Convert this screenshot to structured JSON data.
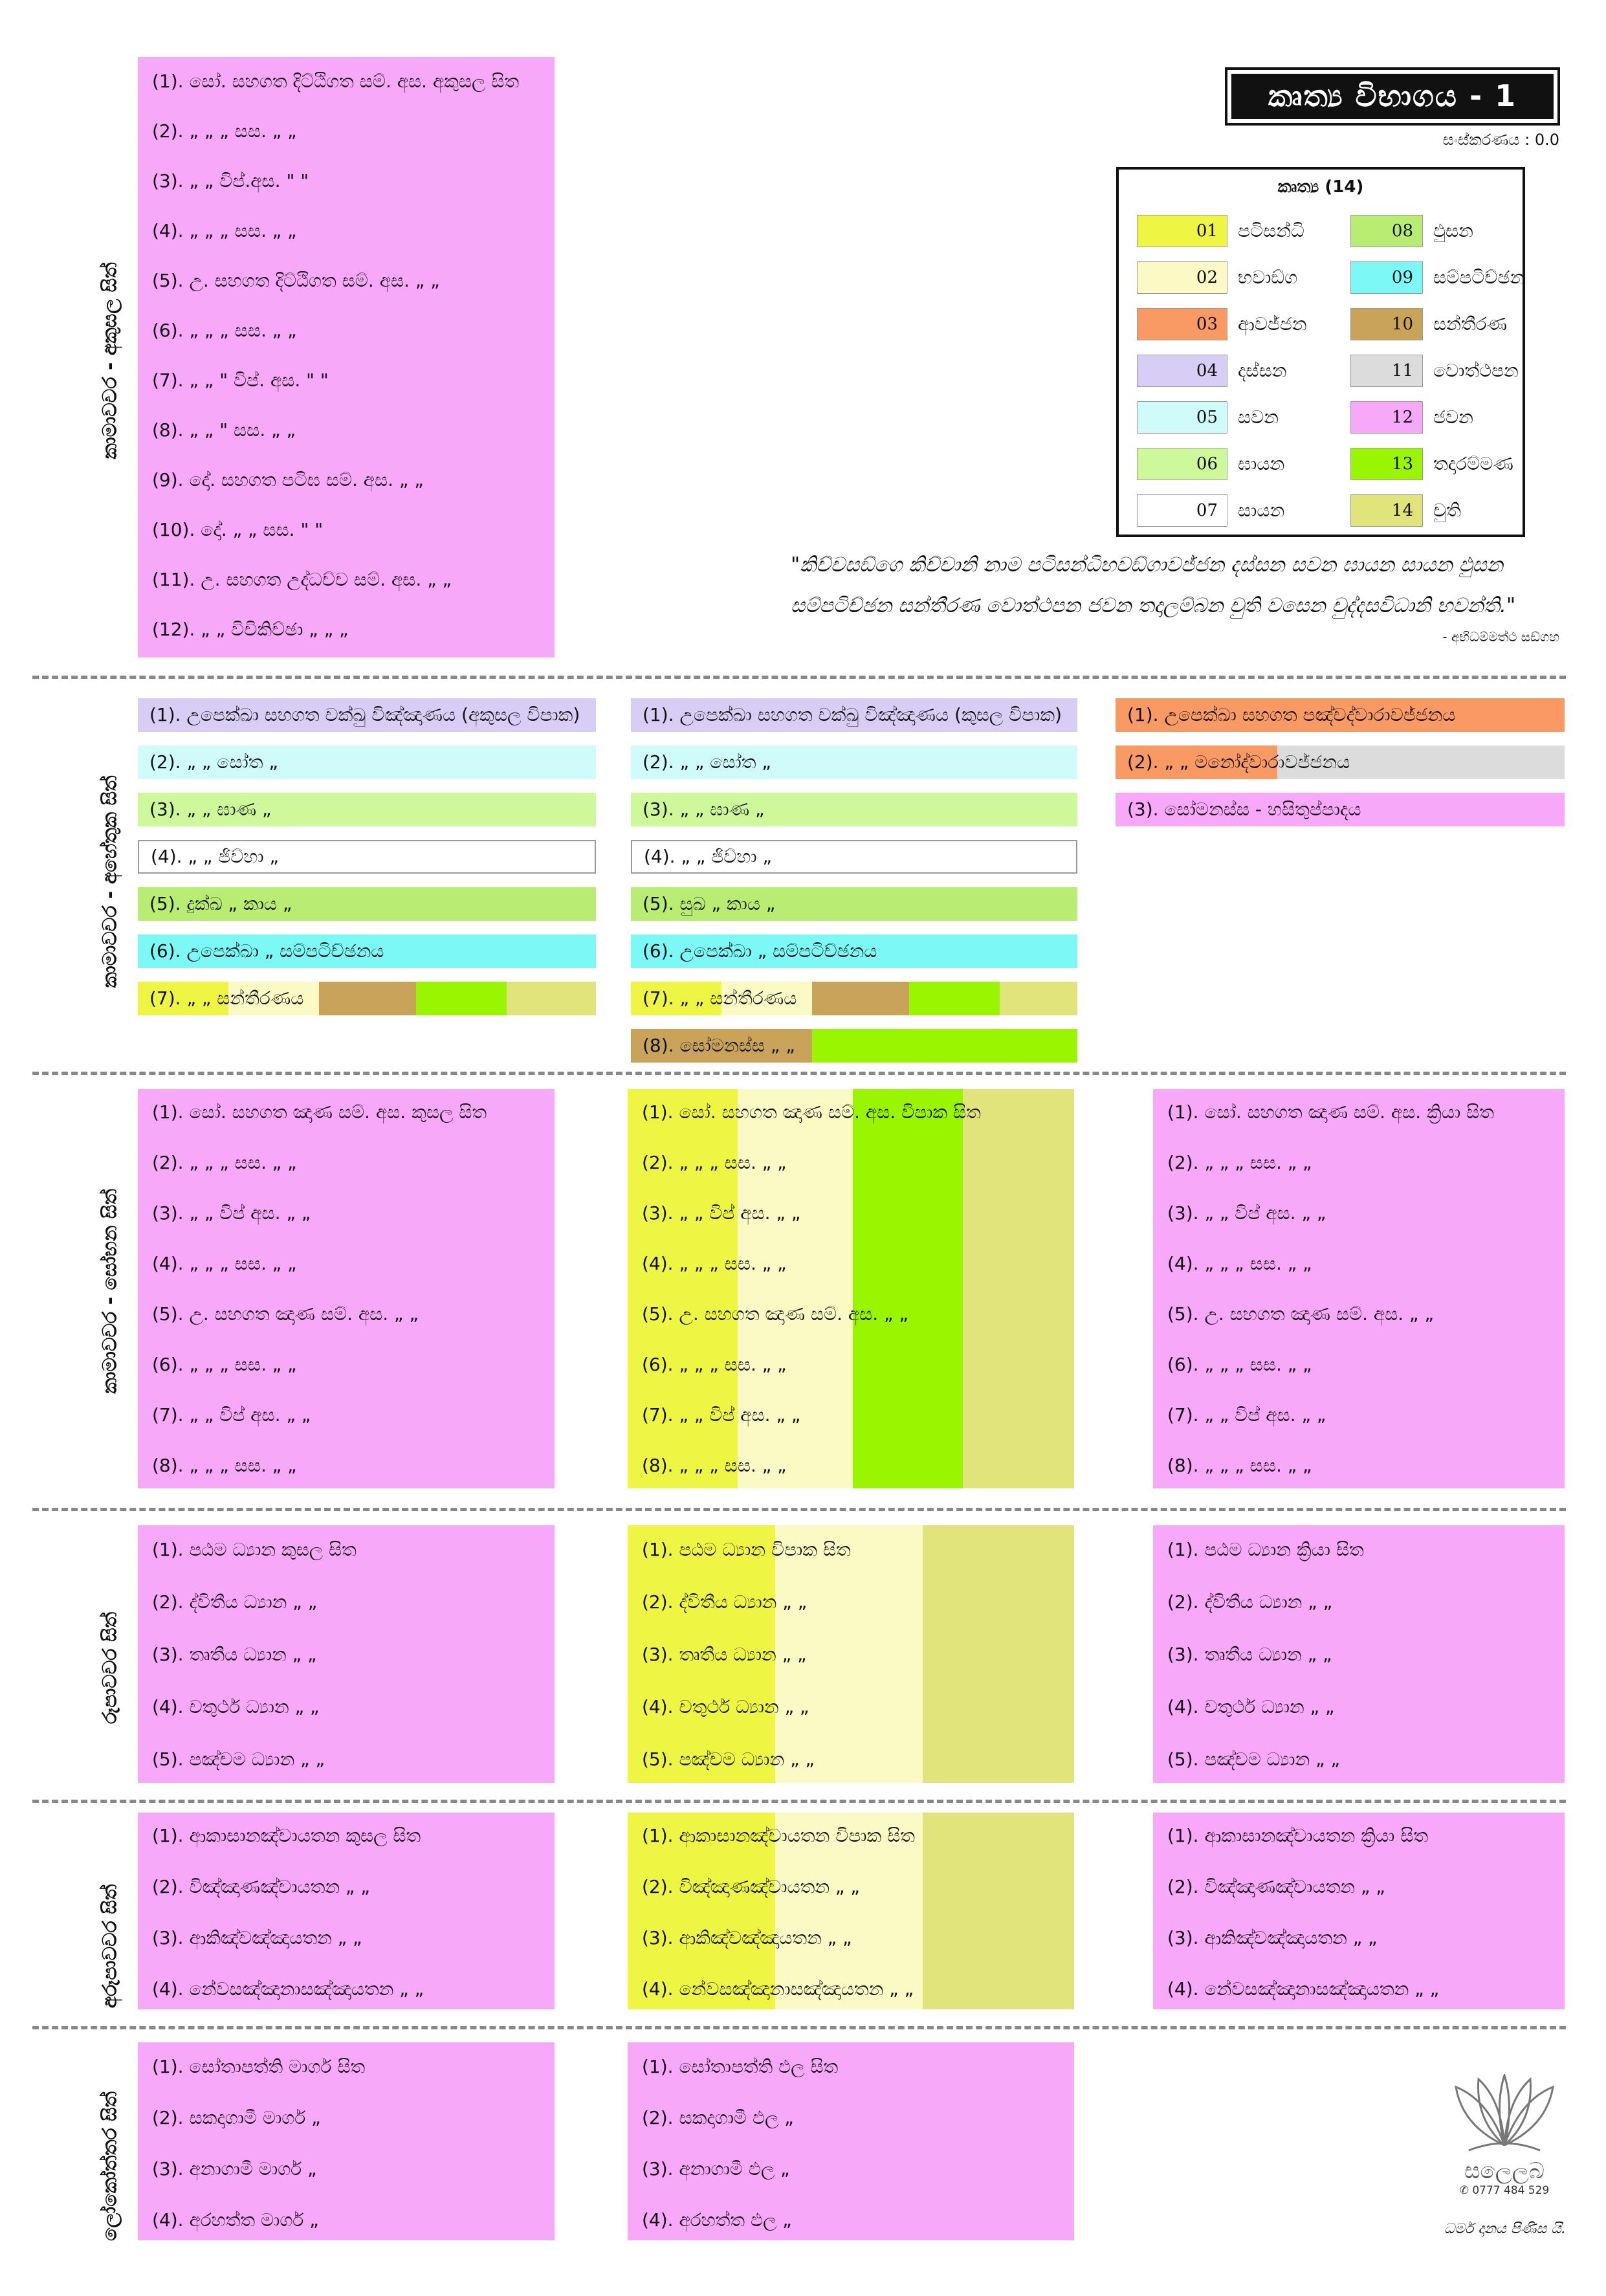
{
  "colors": {
    "c01": "#EEF542",
    "c02": "#FBFAC4",
    "c03": "#F99964",
    "c04": "#D8CDF5",
    "c05": "#CFFBFB",
    "c06": "#CDF99A",
    "c07": "#FFFFFF",
    "c08": "#B9EC73",
    "c09": "#7CF8F7",
    "c10": "#C9A35A",
    "c11": "#DCDCDC",
    "c12": "#F8A8F8",
    "c13": "#99F500",
    "c14": "#E1E37B",
    "dash": "#888888"
  },
  "title": "කෘත්‍ය විභාගය - 1",
  "version": "සංස්කරණය : 0.0",
  "legend": {
    "title": "කෘත්‍ය (14)",
    "items": [
      {
        "num": "01",
        "label": "පටිසන්ධි"
      },
      {
        "num": "02",
        "label": "භවාඞ්ග"
      },
      {
        "num": "03",
        "label": "ආවජ්ජන"
      },
      {
        "num": "04",
        "label": "දස්සන"
      },
      {
        "num": "05",
        "label": "සවන"
      },
      {
        "num": "06",
        "label": "ඝායන"
      },
      {
        "num": "07",
        "label": "සායන"
      },
      {
        "num": "08",
        "label": "ඵුසන"
      },
      {
        "num": "09",
        "label": "සම්පටිච්ඡන"
      },
      {
        "num": "10",
        "label": "සන්තීරණ"
      },
      {
        "num": "11",
        "label": "වොත්ථපන"
      },
      {
        "num": "12",
        "label": "ජවන"
      },
      {
        "num": "13",
        "label": "තදාරම්මණ"
      },
      {
        "num": "14",
        "label": "චුති"
      }
    ]
  },
  "quote": {
    "line1": "\"කිච්චසඞ්ගෙ කිච්චානි නාම පටිසන්ධිභවඞ්ගාවජ්ජන දස්සන සවන ඝායන සායන ඵුසන",
    "line2": "සම්පටිච්ඡන සන්තීරණ වොත්ථපන ජවන තදාලම්බන චුති වසෙන චුද්දසවිධානි භවන්ති.\"",
    "source": "- අභිධම්මත්ථ සඞ්ගහ"
  },
  "sections": {
    "akusala": {
      "label": "කාමාවචර - අකුසල සිත්",
      "rows": [
        "(1).  සෝ. සහගත දිට්ඨිගත සම්. අස. අකුසල සිත",
        "(2).   „        „         „     සස.   „    „",
        "(3).   „        „      විප්.අස.   \"     \"",
        "(4).   „        „         „     සස.   „    „",
        "(5).  උ. සහගත දිට්ඨිගත සම්. අස.   „    „",
        "(6).   „        „         „     සස.   „    „",
        "(7).   „    „    \"   විප්. අස.   \"    \"",
        "(8).   „    „    \"      සස.   „    „",
        "(9).  දෝ. සහගත පටිඝ සම්. අස.   „    „",
        "(10). දෝ.      „         „     සස.   \"    \"",
        "(11). උ.  සහගත උද්ධච්ච සම්. අස.   „    „",
        "(12).  „    „    විචිකිච්ඡා   „    „    „"
      ]
    },
    "ahetuka": {
      "label": "කාමාවචර - අහේතුක සිත්",
      "col1": [
        "(1). උපෙක්ඛා සහගත චක්ඛු විඤ්ඤාණය (අකුසල විපාක)",
        "(2).    „      „    සෝත   „",
        "(3).    „      „    ඝාණ   „",
        "(4).    „      „    ජිව්හා   „",
        "(5). දුක්ඛ    „    කාය    „",
        "(6). උපෙක්ඛා  „  සම්පටිච්ඡනය",
        "(7).   „       „   සන්තීරණය"
      ],
      "col2": [
        "(1). උපෙක්ඛා සහගත චක්ඛු විඤ්ඤාණය (කුසල විපාක)",
        "(2).    „      „    සෝත   „",
        "(3).    „      „    ඝාණ   „",
        "(4).    „      „    ජිව්හා   „",
        "(5). සුඛ    „    කාය    „",
        "(6). උපෙක්ඛා  „  සම්පටිච්ඡනය",
        "(7).   „       „   සන්තීරණය",
        "(8). සෝමනස්ස   „     „"
      ],
      "col3": [
        "(1). උපෙක්ඛා සහගත පඤ්චද්වාරාවජ්ජනය",
        "(2).    „      „   මනෝද්වාරාවජ්ජනය",
        "(3). සෝමනස්ස  -  හසිතුප්පාදය"
      ]
    },
    "sobhana": {
      "label": "කාමාවචර - සෝභන සිත්",
      "col1": [
        "(1). සෝ. සහගත ඤාණ සම්. අස. කුසල සිත",
        "(2).   „    „     „     සස.   „    „",
        "(3).   „    „   විප් අස.   „    „",
        "(4).   „    „     „     සස.   „    „",
        "(5). උ. සහගත ඤාණ සම්. අස.   „    „",
        "(6).   „    „     „     සස.   „    „",
        "(7).   „    „   විප් අස.   „    „",
        "(8).   „    „     „     සස.   „    „"
      ],
      "col2": [
        "(1). සෝ. සහගත ඤාණ සම්. අස. විපාක සිත",
        "(2).   „    „     „     සස.   „    „",
        "(3).   „    „   විප් අස.   „    „",
        "(4).   „    „     „     සස.   „    „",
        "(5). උ. සහගත ඤාණ සම්. අස.   „    „",
        "(6).   „    „     „     සස.   „    „",
        "(7).   „    „   විප් අස.   „    „",
        "(8).   „    „     „     සස.   „    „"
      ],
      "col3": [
        "(1). සෝ. සහගත ඤාණ සම්. අස. ක්‍රියා සිත",
        "(2).   „    „     „     සස.   „    „",
        "(3).   „    „   විප් අස.   „    „",
        "(4).   „    „     „     සස.   „    „",
        "(5). උ. සහගත ඤාණ සම්. අස.   „    „",
        "(6).   „    „     „     සස.   „    „",
        "(7).   „    „   විප් අස.   „    „",
        "(8).   „    „     „     සස.   „    „"
      ]
    },
    "rupa": {
      "label": "රූපාවචර සිත්",
      "col1": [
        "(1). පඨම ධ්‍යාන  කුසල සිත",
        "(2). ද්විතීය ධ්‍යාන   „    „",
        "(3). තෘතීය ධ්‍යාන   „    „",
        "(4). චතුර්ථ ධ්‍යාන   „    „",
        "(5). පඤ්චම ධ්‍යාන   „    „"
      ],
      "col2": [
        "(1). පඨම ධ්‍යාන  විපාක සිත",
        "(2). ද්විතීය ධ්‍යාන   „    „",
        "(3). තෘතීය ධ්‍යාන   „    „",
        "(4). චතුර්ථ ධ්‍යාන   „    „",
        "(5). පඤ්චම ධ්‍යාන   „    „"
      ],
      "col3": [
        "(1). පඨම ධ්‍යාන  ක්‍රියා සිත",
        "(2). ද්විතීය ධ්‍යාන   „    „",
        "(3). තෘතීය ධ්‍යාන   „    „",
        "(4). චතුර්ථ ධ්‍යාන   „    „",
        "(5). පඤ්චම ධ්‍යාන   „    „"
      ]
    },
    "arupa": {
      "label": "අරූපාවචර සිත්",
      "col1": [
        "(1). ආකාසානඤ්චායතන      කුසල සිත",
        "(2). විඤ්ඤාණඤ්චායතන       „    „",
        "(3). ආකිඤ්චඤ්ඤායතන       „    „",
        "(4). නේවසඤ්ඤානාසඤ්ඤායතන  „    „"
      ],
      "col2": [
        "(1). ආකාසානඤ්චායතන      විපාක සිත",
        "(2). විඤ්ඤාණඤ්චායතන       „    „",
        "(3). ආකිඤ්චඤ්ඤායතන       „    „",
        "(4). නේවසඤ්ඤානාසඤ්ඤායතන  „    „"
      ],
      "col3": [
        "(1). ආකාසානඤ්චායතන      ක්‍රියා සිත",
        "(2). විඤ්ඤාණඤ්චායතන       „    „",
        "(3). ආකිඤ්චඤ්ඤායතන       „    „",
        "(4). නේවසඤ්ඤානාසඤ්ඤායතන  „    „"
      ]
    },
    "lokuttara": {
      "label": "ලෝකෝත්තර සිත්",
      "col1": [
        "(1). සෝතාපත්ති මාර්ග සිත",
        "(2). සකදාගාමී මාර්ග   „",
        "(3). අනාගාමී මාර්ග   „",
        "(4). අරහත්ත මාර්ග   „"
      ],
      "col2": [
        "(1). සෝතාපත්ති ඵල සිත",
        "(2). සකදාගාමී ඵල   „",
        "(3). අනාගාමී ඵල   „",
        "(4). අරහත්ත ඵල   „"
      ]
    }
  },
  "logo": {
    "name": "සලෙලබ",
    "phone": "✆ 0777 484 529",
    "footer": "ධර්ම දානය පිණිස යි."
  }
}
